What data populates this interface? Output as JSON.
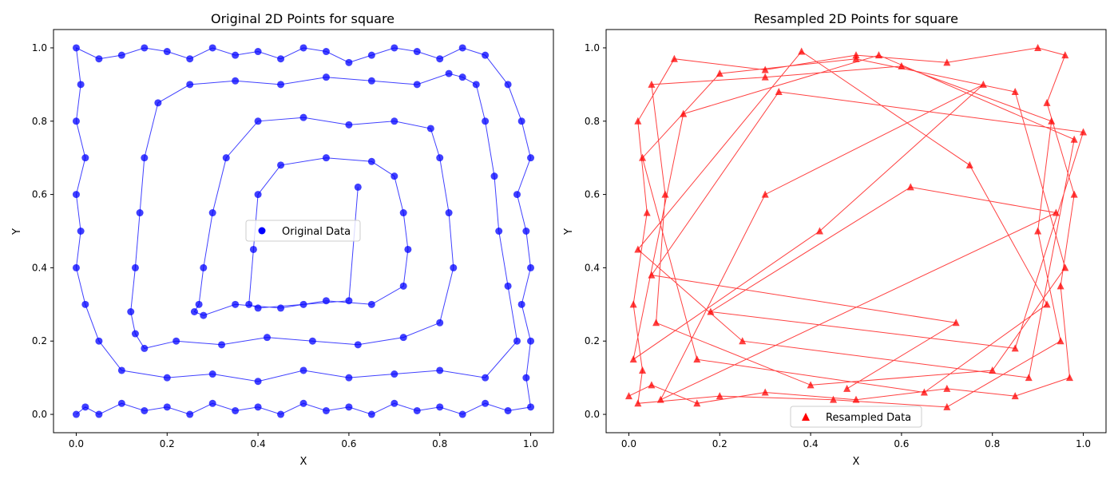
{
  "chart_data": [
    {
      "type": "line",
      "title": "Original 2D Points for square",
      "xlabel": "X",
      "ylabel": "Y",
      "xlim": [
        -0.05,
        1.05
      ],
      "ylim": [
        -0.05,
        1.05
      ],
      "xticks": [
        "0.0",
        "0.2",
        "0.4",
        "0.6",
        "0.8",
        "1.0"
      ],
      "yticks": [
        "0.0",
        "0.2",
        "0.4",
        "0.6",
        "0.8",
        "1.0"
      ],
      "grid": false,
      "legend_position": "center",
      "series": [
        {
          "name": "Original Data",
          "color": "#0000ff",
          "marker": "circle",
          "x": [
            0.0,
            0.02,
            0.05,
            0.1,
            0.15,
            0.2,
            0.25,
            0.3,
            0.35,
            0.4,
            0.45,
            0.5,
            0.55,
            0.6,
            0.65,
            0.7,
            0.75,
            0.8,
            0.85,
            0.9,
            0.95,
            1.0,
            0.99,
            1.0,
            0.98,
            1.0,
            0.99,
            0.97,
            1.0,
            0.98,
            0.95,
            0.9,
            0.85,
            0.8,
            0.75,
            0.7,
            0.65,
            0.6,
            0.55,
            0.5,
            0.45,
            0.4,
            0.35,
            0.3,
            0.25,
            0.2,
            0.15,
            0.1,
            0.05,
            0.0,
            0.01,
            0.0,
            0.02,
            0.0,
            0.01,
            0.0,
            0.02,
            0.05,
            0.1,
            0.2,
            0.3,
            0.4,
            0.5,
            0.6,
            0.7,
            0.8,
            0.9,
            0.97,
            0.95,
            0.93,
            0.92,
            0.9,
            0.88,
            0.85,
            0.82,
            0.75,
            0.65,
            0.55,
            0.45,
            0.35,
            0.25,
            0.18,
            0.15,
            0.14,
            0.13,
            0.12,
            0.13,
            0.15,
            0.22,
            0.32,
            0.42,
            0.52,
            0.62,
            0.72,
            0.8,
            0.83,
            0.82,
            0.8,
            0.78,
            0.7,
            0.6,
            0.5,
            0.4,
            0.33,
            0.3,
            0.28,
            0.27,
            0.26,
            0.28,
            0.35,
            0.45,
            0.55,
            0.65,
            0.72,
            0.73,
            0.72,
            0.7,
            0.65,
            0.55,
            0.45,
            0.4,
            0.39,
            0.38,
            0.4,
            0.5,
            0.6,
            0.62
          ],
          "y": [
            0.0,
            0.02,
            0.0,
            0.03,
            0.01,
            0.02,
            0.0,
            0.03,
            0.01,
            0.02,
            0.0,
            0.03,
            0.01,
            0.02,
            0.0,
            0.03,
            0.01,
            0.02,
            0.0,
            0.03,
            0.01,
            0.02,
            0.1,
            0.2,
            0.3,
            0.4,
            0.5,
            0.6,
            0.7,
            0.8,
            0.9,
            0.98,
            1.0,
            0.97,
            0.99,
            1.0,
            0.98,
            0.96,
            0.99,
            1.0,
            0.97,
            0.99,
            0.98,
            1.0,
            0.97,
            0.99,
            1.0,
            0.98,
            0.97,
            1.0,
            0.9,
            0.8,
            0.7,
            0.6,
            0.5,
            0.4,
            0.3,
            0.2,
            0.12,
            0.1,
            0.11,
            0.09,
            0.12,
            0.1,
            0.11,
            0.12,
            0.1,
            0.2,
            0.35,
            0.5,
            0.65,
            0.8,
            0.9,
            0.92,
            0.93,
            0.9,
            0.91,
            0.92,
            0.9,
            0.91,
            0.9,
            0.85,
            0.7,
            0.55,
            0.4,
            0.28,
            0.22,
            0.18,
            0.2,
            0.19,
            0.21,
            0.2,
            0.19,
            0.21,
            0.25,
            0.4,
            0.55,
            0.7,
            0.78,
            0.8,
            0.79,
            0.81,
            0.8,
            0.7,
            0.55,
            0.4,
            0.3,
            0.28,
            0.27,
            0.3,
            0.29,
            0.31,
            0.3,
            0.35,
            0.45,
            0.55,
            0.65,
            0.69,
            0.7,
            0.68,
            0.6,
            0.45,
            0.3,
            0.29,
            0.3,
            0.31,
            0.62
          ]
        }
      ]
    },
    {
      "type": "line",
      "title": "Resampled 2D Points for square",
      "xlabel": "X",
      "ylabel": "Y",
      "xlim": [
        -0.05,
        1.05
      ],
      "ylim": [
        -0.05,
        1.05
      ],
      "xticks": [
        "0.0",
        "0.2",
        "0.4",
        "0.6",
        "0.8",
        "1.0"
      ],
      "yticks": [
        "0.0",
        "0.2",
        "0.4",
        "0.6",
        "0.8",
        "1.0"
      ],
      "grid": false,
      "legend_position": "lower center",
      "series": [
        {
          "name": "Resampled Data",
          "color": "#ff0000",
          "marker": "triangle",
          "x": [
            0.0,
            0.05,
            0.15,
            0.3,
            0.5,
            0.7,
            0.85,
            0.97,
            0.95,
            0.98,
            0.92,
            0.96,
            0.9,
            0.7,
            0.5,
            0.3,
            0.1,
            0.02,
            0.04,
            0.01,
            0.03,
            0.02,
            0.2,
            0.45,
            0.7,
            0.95,
            0.9,
            0.93,
            0.6,
            0.3,
            0.05,
            0.08,
            0.06,
            0.4,
            0.8,
            0.96,
            0.85,
            0.5,
            0.2,
            0.03,
            0.15,
            0.65,
            0.92,
            0.75,
            0.38,
            0.02,
            0.25,
            0.88,
            0.98,
            0.55,
            0.12,
            0.01,
            0.42,
            0.78,
            0.3,
            0.07,
            0.94,
            0.62,
            0.18,
            0.85,
            1.0,
            0.33,
            0.05,
            0.72,
            0.48
          ],
          "y": [
            0.05,
            0.08,
            0.03,
            0.06,
            0.04,
            0.07,
            0.05,
            0.1,
            0.35,
            0.6,
            0.85,
            0.98,
            1.0,
            0.96,
            0.98,
            0.94,
            0.97,
            0.8,
            0.55,
            0.3,
            0.12,
            0.03,
            0.05,
            0.04,
            0.02,
            0.2,
            0.5,
            0.8,
            0.95,
            0.92,
            0.9,
            0.6,
            0.25,
            0.08,
            0.12,
            0.4,
            0.88,
            0.97,
            0.93,
            0.7,
            0.15,
            0.06,
            0.3,
            0.68,
            0.99,
            0.45,
            0.2,
            0.1,
            0.75,
            0.98,
            0.82,
            0.15,
            0.5,
            0.9,
            0.6,
            0.04,
            0.55,
            0.62,
            0.28,
            0.18,
            0.77,
            0.88,
            0.38,
            0.25,
            0.07
          ]
        }
      ]
    }
  ]
}
